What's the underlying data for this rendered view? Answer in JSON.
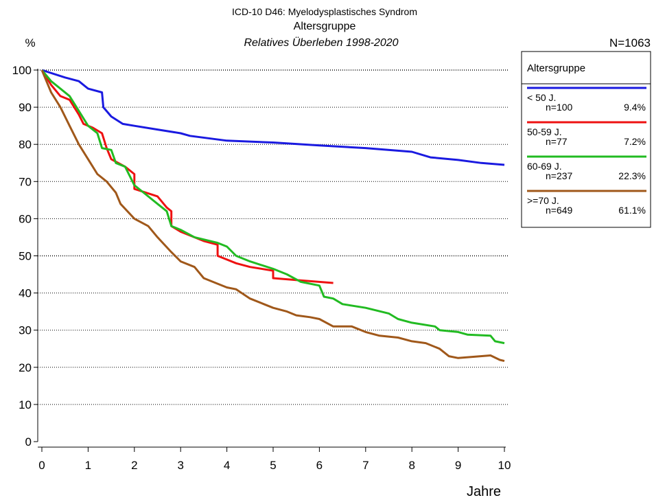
{
  "chart_data": {
    "type": "line",
    "title": "ICD-10 D46: Myelodysplastisches Syndrom",
    "subtitle": "Altersgruppe",
    "subtitle2": "Relatives Überleben 1998-2020",
    "y_label": "%",
    "x_label": "Jahre",
    "n_total": "N=1063",
    "legend_title": "Altersgruppe",
    "xlim": [
      0,
      10
    ],
    "ylim": [
      0,
      100
    ],
    "xticks": [
      0,
      1,
      2,
      3,
      4,
      5,
      6,
      7,
      8,
      9,
      10
    ],
    "yticks": [
      0,
      10,
      20,
      30,
      40,
      50,
      60,
      70,
      80,
      90,
      100
    ],
    "grid": true,
    "series": [
      {
        "name": "< 50 J.",
        "n": "n=100",
        "share": "9.4%",
        "color": "#1a1ae0",
        "x": [
          0,
          0.5,
          0.8,
          1,
          1.3,
          1.33,
          1.5,
          1.75,
          2,
          2.5,
          3,
          3.2,
          4,
          5,
          6,
          7,
          8,
          8.4,
          9,
          9.5,
          10
        ],
        "values": [
          100,
          98,
          97,
          95,
          94,
          90,
          87.5,
          85.5,
          85,
          84,
          83,
          82.3,
          81,
          80.5,
          79.7,
          79,
          78,
          76.5,
          75.8,
          75,
          74.5
        ]
      },
      {
        "name": "50-59 J.",
        "n": "n=77",
        "share": "7.2%",
        "color": "#ee1111",
        "x": [
          0,
          0.2,
          0.4,
          0.6,
          0.8,
          0.9,
          1.1,
          1.3,
          1.4,
          1.5,
          1.8,
          2,
          2,
          2.5,
          2.7,
          2.8,
          2.8,
          3,
          3.5,
          3.8,
          3.8,
          4.2,
          4.5,
          5,
          5,
          5.5,
          6.3
        ],
        "values": [
          100,
          96,
          93,
          92,
          88,
          85.5,
          84.5,
          83,
          79,
          76,
          74,
          72,
          68,
          66,
          63,
          62,
          58,
          56.5,
          54,
          53,
          50,
          48,
          47,
          46,
          44,
          43.5,
          42.7
        ]
      },
      {
        "name": "60-69 J.",
        "n": "n=237",
        "share": "22.3%",
        "color": "#22bb22",
        "x": [
          0,
          0.2,
          0.4,
          0.6,
          0.8,
          1,
          1.2,
          1.3,
          1.5,
          1.6,
          1.8,
          2,
          2.2,
          2.5,
          2.7,
          2.8,
          3,
          3.3,
          3.8,
          4,
          4.2,
          4.5,
          5,
          5.3,
          5.6,
          6,
          6.1,
          6.3,
          6.5,
          7,
          7.5,
          7.7,
          8,
          8.5,
          8.6,
          9,
          9.2,
          9.7,
          9.8,
          10
        ],
        "values": [
          100,
          97,
          95,
          93,
          89,
          85,
          83,
          79,
          78.5,
          75,
          74,
          69,
          67,
          64,
          62,
          58,
          57,
          55,
          53.5,
          52.5,
          50,
          48.5,
          46.5,
          45,
          43,
          42,
          39,
          38.5,
          37,
          36,
          34.5,
          33,
          32,
          31,
          30,
          29.5,
          28.8,
          28.5,
          27,
          26.5
        ]
      },
      {
        "name": ">=70 J.",
        "n": "n=649",
        "share": "61.1%",
        "color": "#a0581a",
        "x": [
          0,
          0.1,
          0.2,
          0.4,
          0.6,
          0.8,
          1,
          1.2,
          1.4,
          1.6,
          1.7,
          2,
          2.3,
          2.5,
          2.8,
          3,
          3.3,
          3.5,
          3.8,
          4,
          4.2,
          4.5,
          4.8,
          5,
          5.3,
          5.5,
          5.8,
          6,
          6.3,
          6.7,
          7,
          7.3,
          7.7,
          8,
          8.3,
          8.6,
          8.8,
          9,
          9.7,
          9.9,
          10
        ],
        "values": [
          100,
          97,
          94,
          90,
          85,
          80,
          76,
          72,
          70,
          67,
          64,
          60,
          58,
          55,
          51,
          48.5,
          47,
          44,
          42.5,
          41.5,
          41,
          38.5,
          37,
          36,
          35,
          34,
          33.5,
          33,
          31,
          31,
          29.5,
          28.5,
          28,
          27,
          26.5,
          25,
          23,
          22.5,
          23.2,
          22,
          21.7
        ]
      }
    ]
  }
}
